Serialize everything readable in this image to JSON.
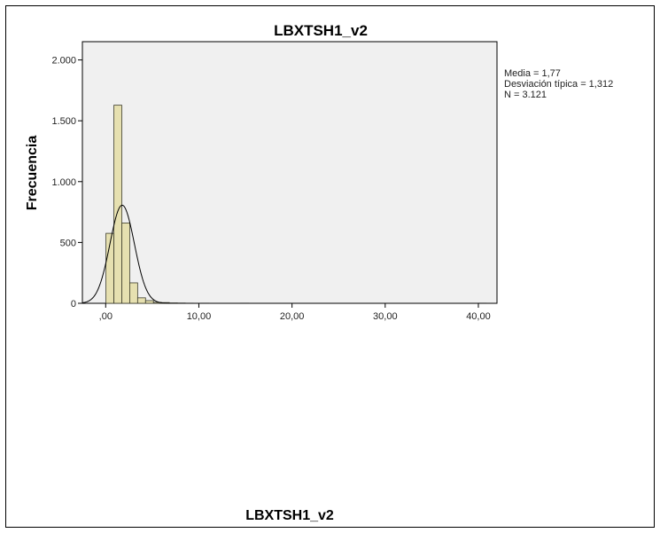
{
  "chart_data": {
    "type": "bar",
    "title": "LBXTSH1_v2",
    "xlabel": "LBXTSH1_v2",
    "ylabel": "Frecuencia",
    "xlim": [
      -2.5,
      42
    ],
    "ylim": [
      0,
      2150
    ],
    "x_ticks": [
      {
        "value": 0,
        "label": ",00"
      },
      {
        "value": 10,
        "label": "10,00"
      },
      {
        "value": 20,
        "label": "20,00"
      },
      {
        "value": 30,
        "label": "30,00"
      },
      {
        "value": 40,
        "label": "40,00"
      }
    ],
    "y_ticks": [
      {
        "value": 0,
        "label": "0"
      },
      {
        "value": 500,
        "label": "500"
      },
      {
        "value": 1000,
        "label": "1.000"
      },
      {
        "value": 1500,
        "label": "1.500"
      },
      {
        "value": 2000,
        "label": "2.000"
      }
    ],
    "bin_width": 0.85,
    "bins_start": [
      0.03,
      0.88,
      1.73,
      2.58,
      3.43,
      4.28,
      5.13,
      5.98,
      6.83,
      7.68,
      8.53,
      10.23,
      14.48,
      39.98
    ],
    "counts": [
      575,
      1628,
      660,
      168,
      45,
      22,
      8,
      6,
      3,
      2,
      1,
      1,
      1,
      1
    ],
    "normal_curve": {
      "mean": 1.77,
      "sd": 1.312,
      "n": 3121
    },
    "stats": [
      "Media = 1,77",
      "Desviación típica = 1,312",
      "N = 3.121"
    ],
    "colors": {
      "bar_fill": "#e6e0b0",
      "bar_stroke": "#3a3a2a",
      "plot_bg": "#f0f0f0",
      "curve": "#000000"
    }
  }
}
